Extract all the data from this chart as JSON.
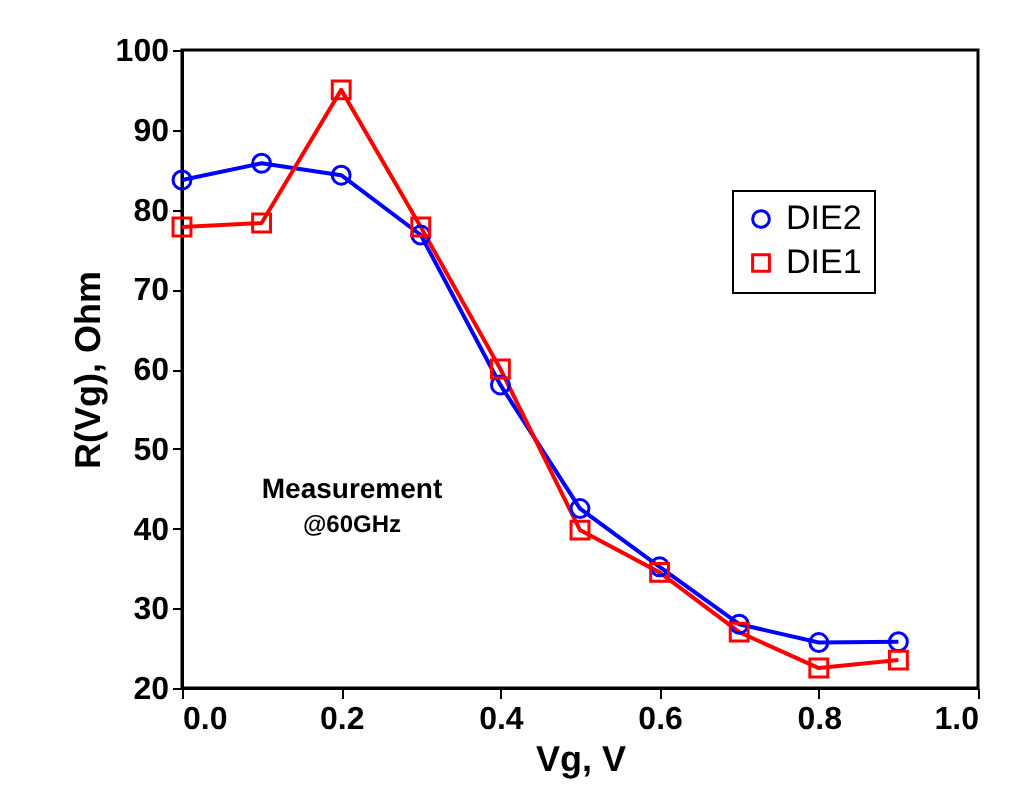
{
  "chart_data": {
    "type": "line",
    "xlabel": "Vg, V",
    "ylabel": "R(Vg), Ohm",
    "x": [
      0,
      0.1,
      0.2,
      0.3,
      0.4,
      0.5,
      0.6,
      0.7,
      0.8,
      0.9
    ],
    "series": [
      {
        "name": "DIE2",
        "color": "#0000ff",
        "marker": "circle",
        "values": [
          83.7,
          85.8,
          84.3,
          76.8,
          58,
          42.5,
          35.2,
          28,
          25.7,
          25.8
        ]
      },
      {
        "name": "DIE1",
        "color": "#ff0000",
        "marker": "square",
        "values": [
          77.8,
          78.3,
          95,
          77.8,
          60,
          39.8,
          34.5,
          27,
          22.5,
          23.5
        ]
      }
    ],
    "xlim": [
      0,
      1
    ],
    "xticks": [
      {
        "value": 0,
        "label": "0.0"
      },
      0.2,
      0.4,
      0.6,
      0.8,
      {
        "value": 1,
        "label": "1.0"
      }
    ],
    "ylim": [
      20,
      100
    ],
    "yticks": [
      20,
      30,
      40,
      50,
      60,
      70,
      80,
      90,
      100
    ],
    "legend": "top right",
    "line_style": "solid",
    "annotations": [
      "Measurement",
      "@60GHz"
    ]
  }
}
